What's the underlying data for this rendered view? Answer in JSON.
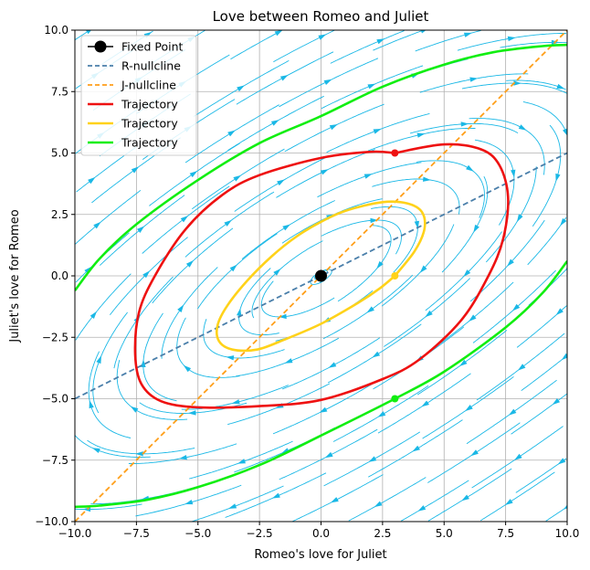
{
  "chart_data": {
    "type": "line",
    "title": "Love between Romeo and Juliet",
    "xlabel": "Romeo's love for Juliet",
    "ylabel": "Juliet's love for Romeo",
    "xlim": [
      -10,
      10
    ],
    "ylim": [
      -10,
      10
    ],
    "xticks": [
      "−10.0",
      "−7.5",
      "−5.0",
      "−2.5",
      "0.0",
      "2.5",
      "5.0",
      "7.5",
      "10.0"
    ],
    "yticks": [
      "−10.0",
      "−7.5",
      "−5.0",
      "−2.5",
      "0.0",
      "2.5",
      "5.0",
      "7.5",
      "10.0"
    ],
    "grid": true,
    "legend_position": "top-left",
    "fixed_point": {
      "name": "Fixed Point",
      "x": 0,
      "y": 0,
      "color": "#000000"
    },
    "nullclines": [
      {
        "name": "R-nullcline",
        "color": "#4a7faa",
        "points": [
          [
            -10,
            -5
          ],
          [
            10,
            5
          ]
        ]
      },
      {
        "name": "J-nullcline",
        "color": "#ff9f1a",
        "points": [
          [
            -10,
            -10
          ],
          [
            10,
            10
          ]
        ]
      }
    ],
    "trajectories": [
      {
        "name": "Trajectory",
        "color": "#ee1111",
        "start": [
          3,
          5
        ],
        "points": [
          [
            3,
            5
          ],
          [
            5,
            5.35
          ],
          [
            6.5,
            5.15
          ],
          [
            7.25,
            4.5
          ],
          [
            7.6,
            3.2
          ],
          [
            7.4,
            1.5
          ],
          [
            6.8,
            0
          ],
          [
            5.7,
            -1.8
          ],
          [
            4,
            -3.4
          ],
          [
            2.5,
            -4.2
          ],
          [
            0,
            -5.05
          ],
          [
            -2.5,
            -5.3
          ],
          [
            -5,
            -5.35
          ],
          [
            -6.5,
            -5.1
          ],
          [
            -7.3,
            -4.4
          ],
          [
            -7.55,
            -3.2
          ],
          [
            -7.4,
            -1.5
          ],
          [
            -6.75,
            0
          ],
          [
            -5.5,
            1.9
          ],
          [
            -4,
            3.3
          ],
          [
            -2.5,
            4.1
          ],
          [
            0,
            4.8
          ],
          [
            2,
            5.05
          ],
          [
            3,
            5
          ]
        ]
      },
      {
        "name": "Trajectory",
        "color": "#ffd21a",
        "start": [
          3,
          0
        ],
        "points": [
          [
            3,
            0
          ],
          [
            3.8,
            1
          ],
          [
            4.2,
            1.9
          ],
          [
            4.1,
            2.6
          ],
          [
            3.5,
            2.95
          ],
          [
            2.5,
            3
          ],
          [
            1,
            2.65
          ],
          [
            0,
            2.2
          ],
          [
            -1,
            1.6
          ],
          [
            -2,
            0.8
          ],
          [
            -3,
            -0.2
          ],
          [
            -3.8,
            -1.2
          ],
          [
            -4.2,
            -2
          ],
          [
            -4.15,
            -2.65
          ],
          [
            -3.6,
            -3
          ],
          [
            -2.6,
            -3
          ],
          [
            -1.5,
            -2.6
          ],
          [
            0,
            -1.95
          ],
          [
            1.5,
            -1.1
          ],
          [
            2.4,
            -0.5
          ],
          [
            3,
            0
          ]
        ]
      },
      {
        "name": "Trajectory",
        "color": "#11ee11",
        "start": [
          3,
          -5
        ],
        "points": [
          [
            -10,
            -9.4
          ],
          [
            -9,
            -9.35
          ],
          [
            -7,
            -9.1
          ],
          [
            -5,
            -8.6
          ],
          [
            -2.5,
            -7.7
          ],
          [
            0,
            -6.5
          ],
          [
            3,
            -5
          ],
          [
            5,
            -3.9
          ],
          [
            7.5,
            -2.1
          ],
          [
            9,
            -0.7
          ],
          [
            10,
            0.6
          ]
        ],
        "points_upper": [
          [
            -10,
            -0.6
          ],
          [
            -9,
            0.7
          ],
          [
            -7.5,
            2.1
          ],
          [
            -5,
            3.9
          ],
          [
            -2.5,
            5.4
          ],
          [
            0,
            6.5
          ],
          [
            2.5,
            7.7
          ],
          [
            5,
            8.6
          ],
          [
            7,
            9.1
          ],
          [
            9,
            9.35
          ],
          [
            10,
            9.4
          ]
        ]
      }
    ],
    "streamline_color": "#1ab8e6",
    "series": [
      {
        "name": "Fixed Point"
      },
      {
        "name": "R-nullcline"
      },
      {
        "name": "J-nullcline"
      },
      {
        "name": "Trajectory"
      },
      {
        "name": "Trajectory"
      },
      {
        "name": "Trajectory"
      }
    ]
  }
}
